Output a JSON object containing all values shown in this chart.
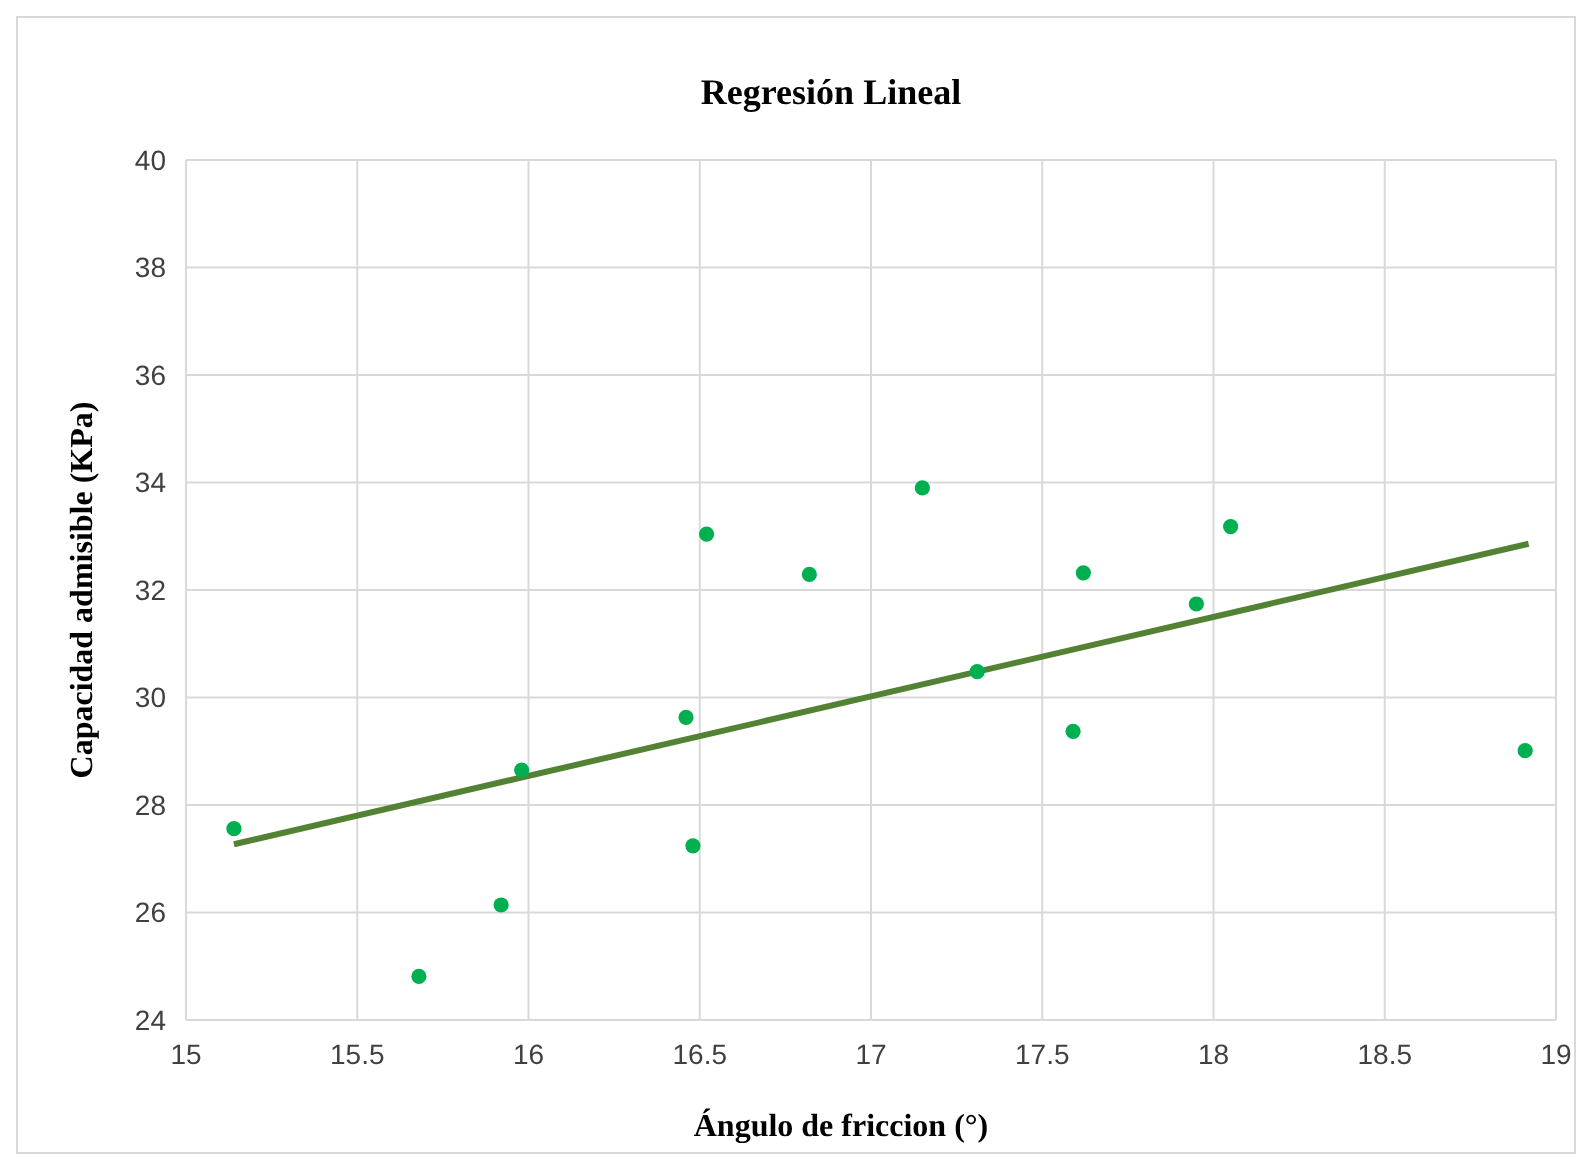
{
  "chart_data": {
    "type": "scatter",
    "title": "Regresión Lineal",
    "xlabel": "Ángulo de friccion (°)",
    "ylabel": "Capacidad admisible (KPa)",
    "xlim": [
      15,
      19
    ],
    "xticks": [
      15,
      15.5,
      16,
      16.5,
      17,
      17.5,
      18,
      18.5,
      19
    ],
    "ylim": [
      24,
      40
    ],
    "yticks": [
      24,
      26,
      28,
      30,
      32,
      34,
      36,
      38,
      40
    ],
    "grid": true,
    "series": [
      {
        "marker": "circle",
        "color": "#00b050",
        "x": [
          15.14,
          15.68,
          15.92,
          15.98,
          16.46,
          16.48,
          16.52,
          16.82,
          17.15,
          17.31,
          17.59,
          17.62,
          17.95,
          18.05,
          18.91
        ],
        "values": [
          27.56,
          24.81,
          26.14,
          28.65,
          29.63,
          27.24,
          33.04,
          32.29,
          33.9,
          30.48,
          29.37,
          32.32,
          31.74,
          33.18,
          29.01
        ]
      },
      {
        "type": "line",
        "color": "#548235",
        "x": [
          15.14,
          18.92
        ],
        "values": [
          27.27,
          32.86
        ]
      }
    ]
  }
}
